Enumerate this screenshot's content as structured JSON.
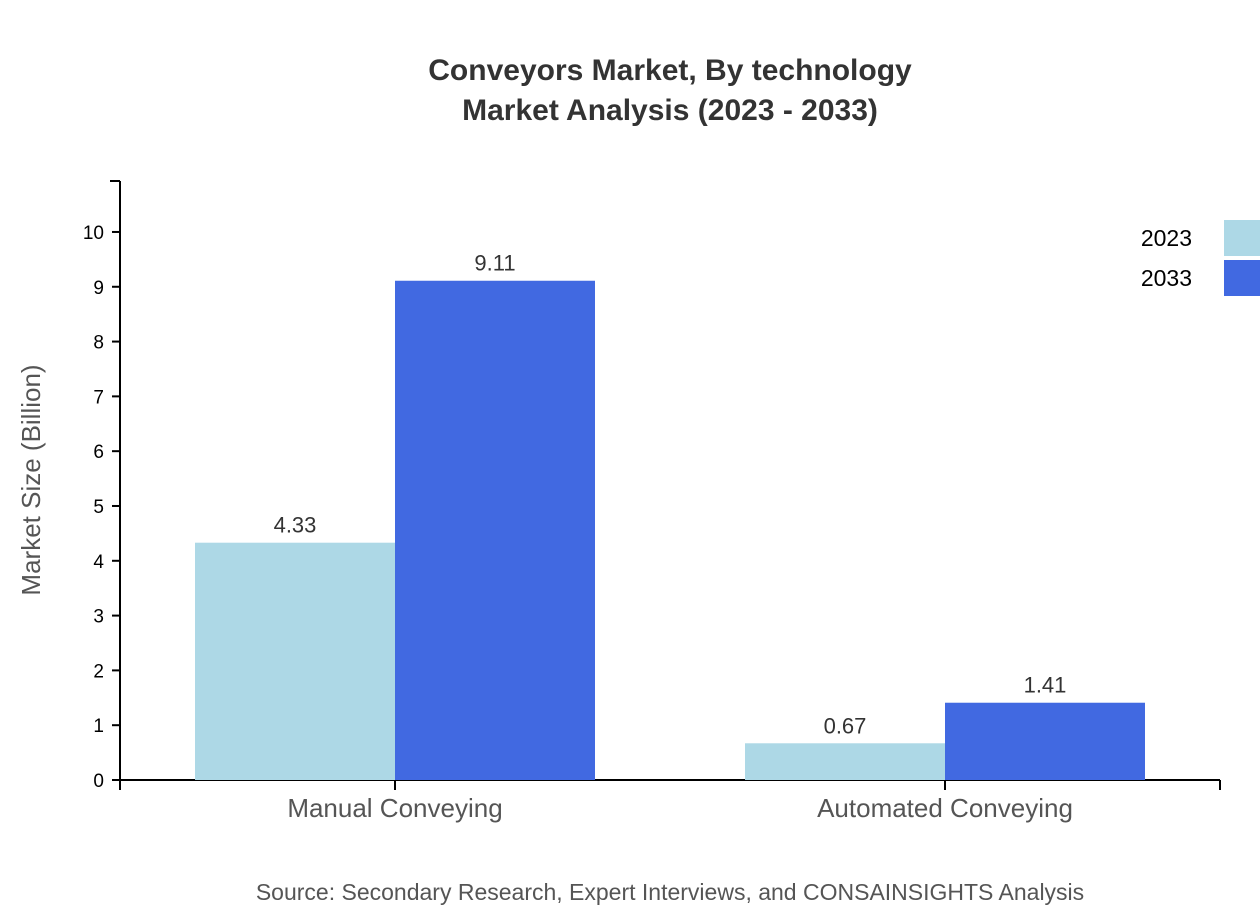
{
  "chart_data": {
    "type": "bar",
    "title_lines": [
      "Conveyors Market, By technology",
      "Market Analysis (2023 - 2033)"
    ],
    "categories": [
      "Manual Conveying",
      "Automated Conveying"
    ],
    "series": [
      {
        "name": "2023",
        "values": [
          4.33,
          0.67
        ],
        "color": "#add8e6"
      },
      {
        "name": "2033",
        "values": [
          9.11,
          1.41
        ],
        "color": "#4169e1"
      }
    ],
    "xlabel": "",
    "ylabel": "Market Size (Billion)",
    "ylim": [
      0,
      10.93
    ],
    "yticks": [
      0,
      1,
      2,
      3,
      4,
      5,
      6,
      7,
      8,
      9,
      10
    ],
    "grid": false,
    "legend_position": "top-right",
    "source": "Source: Secondary Research, Expert Interviews, and CONSAINSIGHTS Analysis"
  }
}
